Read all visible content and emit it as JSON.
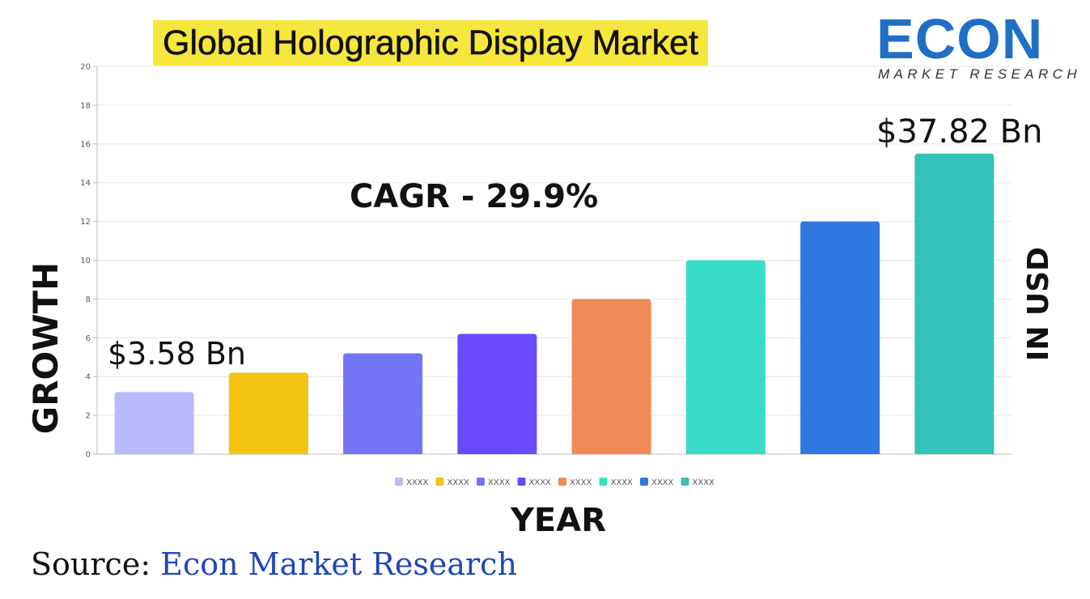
{
  "title": "Global Holographic Display Market",
  "logo": {
    "main": "ECON",
    "sub": "MARKET RESEARCH"
  },
  "axis_left_label": "GROWTH",
  "axis_right_label": "IN USD",
  "axis_bottom_label": "YEAR",
  "source": {
    "label": "Source:",
    "value": "Econ Market Research"
  },
  "chart_data": {
    "type": "bar",
    "title": "Global Holographic Display Market",
    "xlabel": "YEAR",
    "ylabel": "GROWTH",
    "ylim": [
      0,
      20
    ],
    "yticks": [
      0,
      2,
      4,
      6,
      8,
      10,
      12,
      14,
      16,
      18,
      20
    ],
    "grid": true,
    "legend_position": "bottom",
    "categories": [
      "XXXX",
      "XXXX",
      "XXXX",
      "XXXX",
      "XXXX",
      "XXXX",
      "XXXX",
      "XXXX"
    ],
    "values": [
      3.2,
      4.2,
      5.2,
      6.2,
      8.0,
      10.0,
      12.0,
      15.5
    ],
    "colors": [
      "#b9b9fb",
      "#f2c311",
      "#7474f8",
      "#6b49fc",
      "#f08a57",
      "#38dcc9",
      "#2f78e0",
      "#35c2b8"
    ],
    "annotations": {
      "first_value": "$3.58 Bn",
      "last_value": "$37.82 Bn",
      "cagr": "CAGR - 29.9%"
    }
  }
}
